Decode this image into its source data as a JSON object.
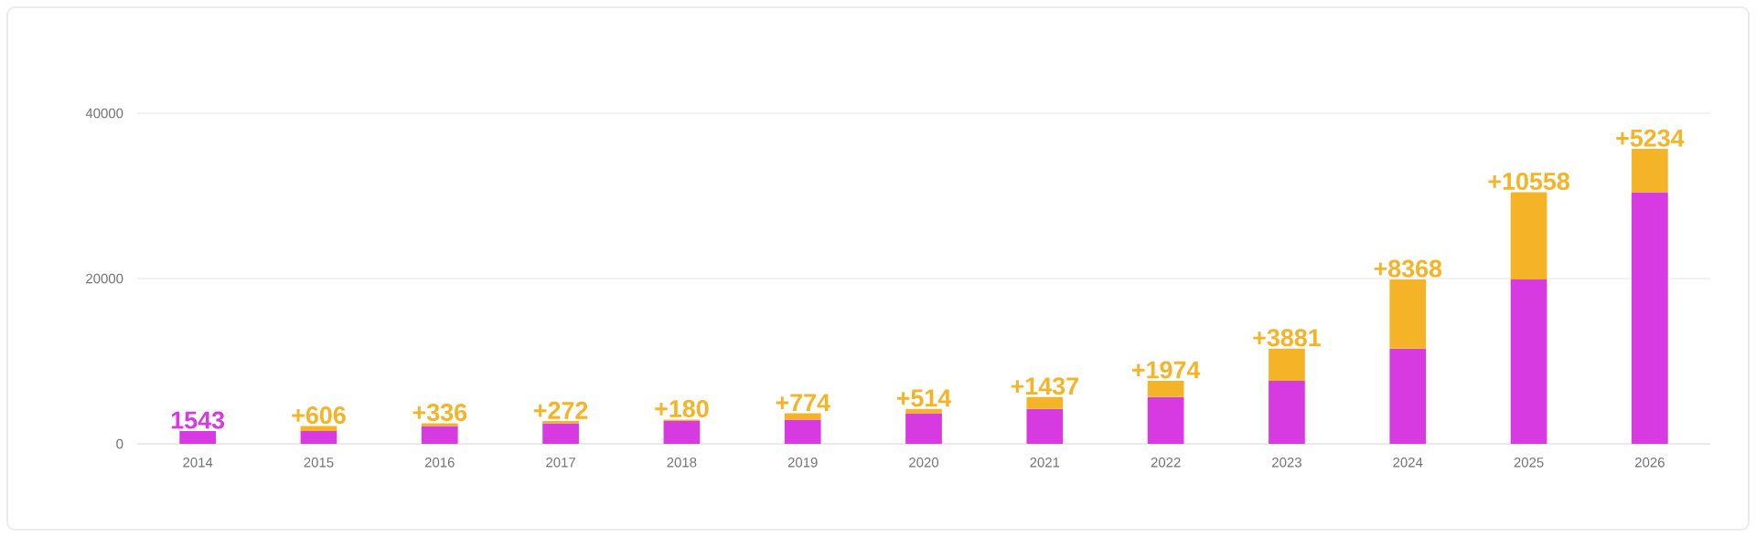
{
  "chart_data": {
    "type": "bar",
    "stacked": true,
    "categories": [
      "2014",
      "2015",
      "2016",
      "2017",
      "2018",
      "2019",
      "2020",
      "2021",
      "2022",
      "2023",
      "2024",
      "2025",
      "2026"
    ],
    "series": [
      {
        "color": "#d63ae0",
        "values": [
          1543,
          1543,
          2149,
          2485,
          2757,
          2937,
          3711,
          4225,
          5662,
          7636,
          11517,
          19885,
          30443
        ],
        "value_labels": [
          "1543",
          null,
          null,
          null,
          null,
          null,
          null,
          null,
          null,
          null,
          null,
          null,
          null
        ]
      },
      {
        "color": "#f5b428",
        "values": [
          null,
          606,
          336,
          272,
          180,
          774,
          514,
          1437,
          1974,
          3881,
          8368,
          10558,
          5234
        ],
        "value_labels": [
          null,
          "+606",
          "+336",
          "+272",
          "+180",
          "+774",
          "+514",
          "+1437",
          "+1974",
          "+3881",
          "+8368",
          "+10558",
          "+5234"
        ]
      }
    ],
    "ylim": [
      0,
      40000
    ],
    "yticks": [
      0,
      20000,
      40000
    ],
    "grid": "y"
  }
}
